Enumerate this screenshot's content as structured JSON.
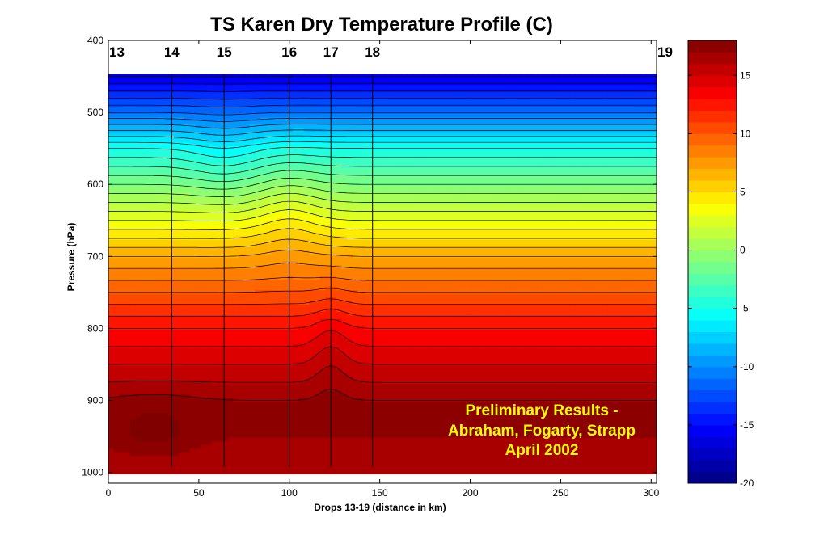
{
  "chart_data": {
    "type": "heatmap",
    "title": "TS Karen Dry Temperature Profile (C)",
    "xlabel": "Drops 13-19 (distance in km)",
    "ylabel": "Pressure (hPa)",
    "xlim": [
      0,
      303
    ],
    "ylim": [
      400,
      1015
    ],
    "y_reversed": true,
    "x_ticks": [
      "0",
      "50",
      "100",
      "150",
      "200",
      "250",
      "300"
    ],
    "y_ticks": [
      "400",
      "500",
      "600",
      "700",
      "800",
      "900",
      "1000"
    ],
    "colorbar": {
      "range": [
        -20,
        18
      ],
      "ticks": [
        "15",
        "10",
        "5",
        "0",
        "-5",
        "-10",
        "-15",
        "-20"
      ],
      "step": 1
    },
    "drops": [
      {
        "label": "13",
        "x": 0
      },
      {
        "label": "14",
        "x": 35
      },
      {
        "label": "15",
        "x": 64
      },
      {
        "label": "16",
        "x": 100
      },
      {
        "label": "17",
        "x": 123
      },
      {
        "label": "18",
        "x": 146
      },
      {
        "label": "19",
        "x": 303
      }
    ],
    "temperature_profile": [
      {
        "pressure": 450,
        "temp_c": -16
      },
      {
        "pressure": 500,
        "temp_c": -11
      },
      {
        "pressure": 550,
        "temp_c": -5
      },
      {
        "pressure": 600,
        "temp_c": -1
      },
      {
        "pressure": 650,
        "temp_c": 3
      },
      {
        "pressure": 700,
        "temp_c": 7
      },
      {
        "pressure": 750,
        "temp_c": 10
      },
      {
        "pressure": 800,
        "temp_c": 13
      },
      {
        "pressure": 850,
        "temp_c": 15
      },
      {
        "pressure": 900,
        "temp_c": 17
      },
      {
        "pressure": 950,
        "temp_c": 17
      },
      {
        "pressure": 1000,
        "temp_c": 16
      }
    ],
    "annotation": [
      "Preliminary Results -",
      "Abraham, Fogarty, Strapp",
      "April 2002"
    ],
    "grid": false,
    "colormap": "jet"
  }
}
